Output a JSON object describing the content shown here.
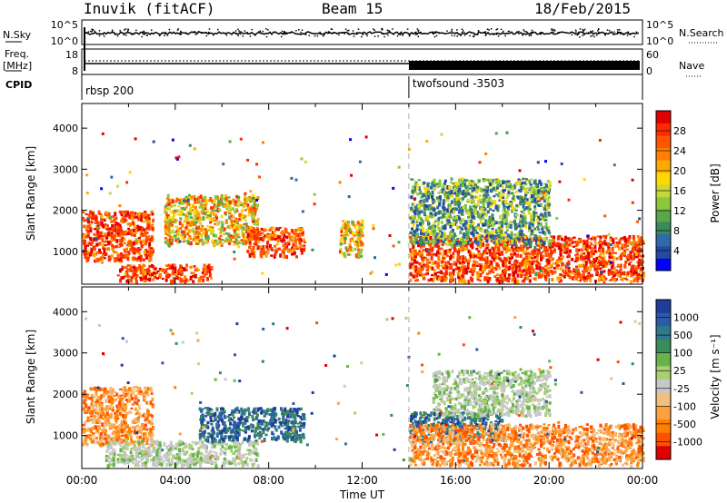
{
  "header": {
    "station": "Inuvik (fitACF)",
    "beam": "Beam 15",
    "date": "18/Feb/2015"
  },
  "panels": {
    "nsky": {
      "label": "N.Sky",
      "ticks": [
        "10^5",
        "10^0"
      ],
      "right_label": "N.Search",
      "right_ticks": [
        "10^5",
        "10^0"
      ]
    },
    "freq": {
      "label_top": "Freq.",
      "label_bottom": "[MHz]",
      "ticks": [
        "18",
        "8"
      ],
      "right_label": "Nave",
      "right_ticks": [
        "60",
        "0"
      ]
    },
    "cpid": {
      "label": "CPID",
      "segments": [
        {
          "name": "rbsp 200",
          "start_hour": 0
        },
        {
          "name": "twofsound -3503",
          "start_hour": 14
        }
      ]
    }
  },
  "chart_data": [
    {
      "type": "heatmap",
      "panel": "power",
      "ylabel": "Slant Range [km]",
      "yticks": [
        "1000",
        "2000",
        "3000",
        "4000"
      ],
      "ylim": [
        200,
        4600
      ],
      "xlim_hours": [
        0,
        24
      ],
      "colorbar": {
        "label": "Power [dB]",
        "ticks": [
          "4",
          "8",
          "12",
          "16",
          "20",
          "24",
          "28"
        ],
        "colors": [
          "#0000ff",
          "#234aa0",
          "#2f6aa8",
          "#3a8a5a",
          "#5aa84a",
          "#8cc83c",
          "#c8d83a",
          "#ffd800",
          "#ffaa00",
          "#ff8000",
          "#ff5500",
          "#ff2a00",
          "#e00000"
        ]
      },
      "regions": [
        {
          "hours": [
            0.0,
            3.0
          ],
          "range_km": [
            800,
            2000
          ],
          "level": "high"
        },
        {
          "hours": [
            1.5,
            5.5
          ],
          "range_km": [
            300,
            700
          ],
          "level": "high"
        },
        {
          "hours": [
            3.5,
            7.5
          ],
          "range_km": [
            1200,
            2400
          ],
          "level": "mid"
        },
        {
          "hours": [
            7.0,
            9.5
          ],
          "range_km": [
            900,
            1600
          ],
          "level": "high"
        },
        {
          "hours": [
            11.0,
            12.0
          ],
          "range_km": [
            900,
            1800
          ],
          "level": "mid"
        },
        {
          "hours": [
            14.0,
            24.0
          ],
          "range_km": [
            300,
            1400
          ],
          "level": "high"
        },
        {
          "hours": [
            14.0,
            20.0
          ],
          "range_km": [
            1200,
            2800
          ],
          "level": "low"
        }
      ]
    },
    {
      "type": "heatmap",
      "panel": "velocity",
      "ylabel": "Slant Range [km]",
      "xlabel": "Time UT",
      "yticks": [
        "1000",
        "2000",
        "3000",
        "4000"
      ],
      "xticks": [
        "00:00",
        "04:00",
        "08:00",
        "12:00",
        "16:00",
        "20:00",
        "00:00"
      ],
      "ylim": [
        200,
        4600
      ],
      "xlim_hours": [
        0,
        24
      ],
      "colorbar": {
        "label": "Velocity [m s⁻¹]",
        "ticks": [
          "1000",
          "500",
          "100",
          "25",
          "-25",
          "-100",
          "-500",
          "-1000"
        ],
        "colors": [
          "#1e3c9a",
          "#2a5aa8",
          "#2f7a8a",
          "#3a8a5a",
          "#66b34a",
          "#a8d070",
          "#c8c8c8",
          "#f0c080",
          "#ffa040",
          "#ff8000",
          "#ff5000",
          "#e00000"
        ]
      },
      "regions": [
        {
          "hours": [
            0.0,
            3.0
          ],
          "range_km": [
            800,
            2200
          ],
          "level": "neg"
        },
        {
          "hours": [
            1.0,
            7.5
          ],
          "range_km": [
            300,
            900
          ],
          "level": "ground"
        },
        {
          "hours": [
            5.0,
            9.5
          ],
          "range_km": [
            900,
            1700
          ],
          "level": "pos"
        },
        {
          "hours": [
            14.0,
            18.0
          ],
          "range_km": [
            900,
            1600
          ],
          "level": "pos"
        },
        {
          "hours": [
            14.0,
            24.0
          ],
          "range_km": [
            300,
            1300
          ],
          "level": "neg"
        },
        {
          "hours": [
            15.0,
            20.0
          ],
          "range_km": [
            1500,
            2600
          ],
          "level": "ground"
        }
      ]
    }
  ]
}
